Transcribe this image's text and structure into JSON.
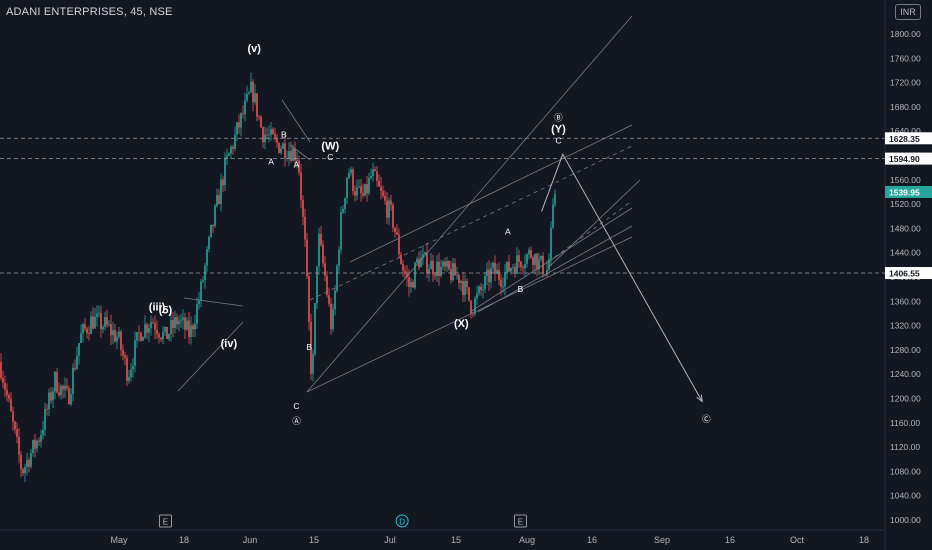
{
  "header": {
    "title": "ADANI ENTERPRISES, 45, NSE",
    "currency": "INR"
  },
  "chart_data": {
    "type": "candlestick",
    "ylim": [
      990,
      1810
    ],
    "y_ticks": [
      1000,
      1040,
      1080,
      1120,
      1160,
      1200,
      1240,
      1280,
      1320,
      1360,
      1400,
      1440,
      1480,
      1520,
      1560,
      1600,
      1640,
      1680,
      1720,
      1760,
      1800
    ],
    "y_tick_labels": [
      "1000.00",
      "1040.00",
      "1080.00",
      "1120.00",
      "1160.00",
      "1200.00",
      "1240.00",
      "1280.00",
      "1320.00",
      "1360.00",
      "1400.00",
      "1440.00",
      "1480.00",
      "1520.00",
      "1560.00",
      "1600.00",
      "1640.00",
      "1680.00",
      "1720.00",
      "1760.00",
      "1800.00"
    ],
    "x_tick_labels": [
      "May",
      "18",
      "Jun",
      "15",
      "Jul",
      "15",
      "Aug",
      "16",
      "Sep",
      "16",
      "Oct",
      "18"
    ],
    "price_levels": [
      {
        "label": "1628.35",
        "value": 1628.35,
        "style": "dashed"
      },
      {
        "label": "1594.90",
        "value": 1594.9,
        "style": "dashed"
      },
      {
        "label": "1406.55",
        "value": 1406.55,
        "style": "dashed"
      }
    ],
    "last_price": {
      "label": "1539.95",
      "value": 1539.95,
      "color": "#26a69a"
    },
    "event_markers": [
      {
        "symbol": "E",
        "date": "2023-05-12"
      },
      {
        "symbol": "D",
        "date": "2023-07-07"
      },
      {
        "symbol": "E",
        "date": "2023-08-04"
      }
    ],
    "wave_labels": [
      {
        "text": "(iii)",
        "date": "2023-05-10",
        "price": 1345
      },
      {
        "text": "(5)",
        "date": "2023-05-12",
        "price": 1340
      },
      {
        "text": "(iv)",
        "date": "2023-05-27",
        "price": 1285
      },
      {
        "text": "(v)",
        "date": "2023-06-02",
        "price": 1770
      },
      {
        "text": "A",
        "date": "2023-06-06",
        "price": 1585
      },
      {
        "text": "B",
        "date": "2023-06-09",
        "price": 1630
      },
      {
        "text": "A",
        "date": "2023-06-12",
        "price": 1580
      },
      {
        "text": "B",
        "date": "2023-06-15",
        "price": 1280
      },
      {
        "text": "C",
        "date": "2023-06-12",
        "price": 1183
      },
      {
        "text": "Ⓐ",
        "date": "2023-06-12",
        "price": 1158
      },
      {
        "text": "(W)",
        "date": "2023-06-20",
        "price": 1610
      },
      {
        "text": "C",
        "date": "2023-06-20",
        "price": 1593
      },
      {
        "text": "(X)",
        "date": "2023-07-21",
        "price": 1318
      },
      {
        "text": "A",
        "date": "2023-08-01",
        "price": 1470
      },
      {
        "text": "B",
        "date": "2023-08-04",
        "price": 1375
      },
      {
        "text": "Ⓑ",
        "date": "2023-08-13",
        "price": 1658
      },
      {
        "text": "(Y)",
        "date": "2023-08-13",
        "price": 1638
      },
      {
        "text": "C",
        "date": "2023-08-13",
        "price": 1620
      },
      {
        "text": "Ⓒ",
        "date": "2023-09-17",
        "price": 1161
      }
    ],
    "projection_path": [
      {
        "date": "2023-08-09",
        "price": 1508
      },
      {
        "date": "2023-08-14",
        "price": 1602
      },
      {
        "date": "2023-09-16",
        "price": 1195
      }
    ]
  }
}
